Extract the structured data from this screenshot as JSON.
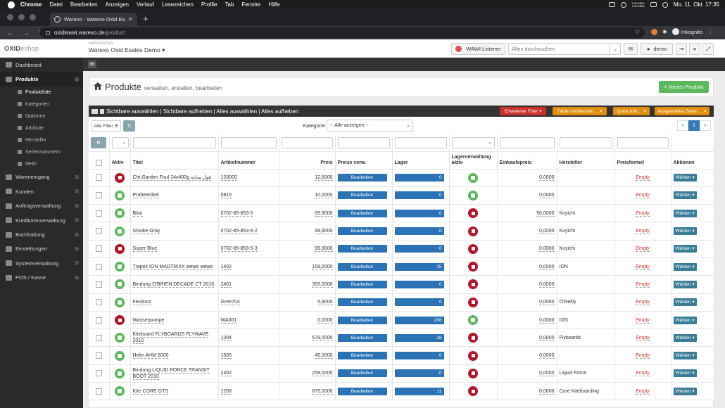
{
  "macbar": {
    "app": "Chrome",
    "menus": [
      "Datei",
      "Bearbeiten",
      "Anzeigen",
      "Verlauf",
      "Lesezeichen",
      "Profile",
      "Tab",
      "Fenster",
      "Hilfe"
    ],
    "net_up": "0.00 MB/s",
    "net_down": "0.03 MB/s",
    "clock": "Mo. 11. Okt.  17:35"
  },
  "browser": {
    "tab_title": "Warexo - Warexo Oxid Esales D",
    "host": "oxidwawi.warexo.de",
    "path": "/product",
    "profile": "Inkognito"
  },
  "header": {
    "logo_main": "OXID",
    "logo_sub": "eshop",
    "mandant_label": "MANDANTEN",
    "mandant_value": "Warexo Oxid Esales Demo",
    "wawi_label": "WAWI Listener",
    "search_placeholder": "Alles durchsuchen",
    "user": "demo"
  },
  "sidebar": {
    "items": [
      {
        "label": "Dashboard",
        "plus": ""
      },
      {
        "label": "Produkte",
        "plus": "⊟"
      }
    ],
    "subitems": [
      "Produktliste",
      "Kategorien",
      "Optionen",
      "Attribute",
      "Hersteller",
      "Seriennummern",
      "MHD"
    ],
    "items2": [
      {
        "label": "Wareneingang",
        "plus": "⊞"
      },
      {
        "label": "Kunden",
        "plus": "⊞"
      },
      {
        "label": "Auftragsverwaltung",
        "plus": "⊞"
      },
      {
        "label": "Kreditorenverwaltung",
        "plus": "⊞"
      },
      {
        "label": "Buchhaltung",
        "plus": "⊞"
      },
      {
        "label": "Einstellungen",
        "plus": "⊞"
      },
      {
        "label": "Systemverwaltung",
        "plus": "⊞"
      },
      {
        "label": "POS / Kasse",
        "plus": "⊞"
      }
    ]
  },
  "page": {
    "title": "Produkte",
    "subtitle": "verwalten, erstellen, bearbeiten",
    "new_button": "+ Neues Produkt"
  },
  "panel": {
    "selection": "Sichtbare auswählen | Sichtbare aufheben | Alles auswählen | Alles aufheben",
    "buttons": [
      {
        "label": "Erweiterter Filter ▾",
        "color": "#c9302c"
      },
      {
        "label": "Felder einblenden ... ▾",
        "color": "#e08e0b"
      },
      {
        "label": "Quick edit ... ▾",
        "color": "#e08e0b"
      },
      {
        "label": "Ausgewählte Zeilen ... ▾",
        "color": "#e08e0b"
      }
    ],
    "all_filter": "Alle Filter ☰",
    "s_button": "S",
    "kategorie_label": "Kategorie",
    "kategorie_value": "-- Alle anzeigen --",
    "pager": [
      "«",
      "1",
      "»"
    ],
    "r_button": "R"
  },
  "columns": [
    "",
    "Aktiv",
    "Titel",
    "Artikelnummer",
    "Preis",
    "Preise verw.",
    "Lager",
    "Lagerverwaltung aktiv",
    "Einkaufspreis",
    "Hersteller",
    "Preisformel",
    "Aktionen"
  ],
  "rows": [
    {
      "aktiv": false,
      "titel": "Cht.Garden Foul 24x400g فول ساده",
      "artnr": "120000",
      "preis": "12,5000",
      "preise": "Bearbeiten",
      "lager": "0",
      "lagerv": true,
      "ek": "0,0000",
      "hersteller": "",
      "formel": "Empty",
      "aktion": "Wählen ▾"
    },
    {
      "aktiv": true,
      "titel": "Probeartikel",
      "artnr": "0815",
      "preis": "10,0000",
      "preise": "Bearbeiten",
      "lager": "0",
      "lagerv": true,
      "ek": "0,0000",
      "hersteller": "",
      "formel": "Empty",
      "aktion": "Wählen ▾"
    },
    {
      "aktiv": true,
      "titel": "Blau",
      "artnr": "0702-85-853-5",
      "preis": "99,9000",
      "preise": "Bearbeiten",
      "lager": "0",
      "lagerv": false,
      "ek": "50,0000",
      "hersteller": "Kuyichi",
      "formel": "Empty",
      "aktion": "Wählen ▾"
    },
    {
      "aktiv": true,
      "titel": "Smoke Gray",
      "artnr": "0702-85-853-5-2",
      "preis": "99,9000",
      "preise": "Bearbeiten",
      "lager": "0",
      "lagerv": false,
      "ek": "0,0000",
      "hersteller": "Kuyichi",
      "formel": "Empty",
      "aktion": "Wählen ▾"
    },
    {
      "aktiv": false,
      "titel": "Super Blue",
      "artnr": "0702-85-853-5-3",
      "preis": "99,9000",
      "preise": "Bearbeiten",
      "lager": "0",
      "lagerv": false,
      "ek": "0,0000",
      "hersteller": "Kuyichi",
      "formel": "Empty",
      "aktion": "Wählen ▾"
    },
    {
      "aktiv": true,
      "titel": "Trapez ION MADTRIXX wewe wewe",
      "artnr": "1402",
      "preis": "159,0000",
      "preise": "Bearbeiten",
      "lager": "15",
      "lagerv": false,
      "ek": "0,0000",
      "hersteller": "ION",
      "formel": "Empty",
      "aktion": "Wählen ▾"
    },
    {
      "aktiv": true,
      "titel": "Bindung O'BRIEN DECADE CT 2010",
      "artnr": "2401",
      "preis": "359,0000",
      "preise": "Bearbeiten",
      "lager": "0",
      "lagerv": false,
      "ek": "0,0000",
      "hersteller": "",
      "formel": "Empty",
      "aktion": "Wählen ▾"
    },
    {
      "aktiv": true,
      "titel": "Feinkost",
      "artnr": "Gree704",
      "preis": "5,9000",
      "preise": "Bearbeiten",
      "lager": "0",
      "lagerv": false,
      "ek": "0,0000",
      "hersteller": "O'Reilly",
      "formel": "Empty",
      "aktion": "Wählen ▾"
    },
    {
      "aktiv": false,
      "titel": "Wasserpumpe",
      "artnr": "WA001",
      "preis": "0,0000",
      "preise": "Bearbeiten",
      "lager": "206",
      "lagerv": true,
      "ek": "0,0000",
      "hersteller": "ION",
      "formel": "Empty",
      "aktion": "Wählen ▾"
    },
    {
      "aktiv": true,
      "titel": "Kiteboard FLYBOARDS FLYWAVE 2010",
      "artnr": "1304",
      "preis": "679,0000",
      "preise": "Bearbeiten",
      "lager": "18",
      "lagerv": false,
      "ek": "0,0000",
      "hersteller": "Flyboards",
      "formel": "Empty",
      "aktion": "Wählen ▾"
    },
    {
      "aktiv": true,
      "titel": "Helm AHM 5000",
      "artnr": "1505",
      "preis": "45,0000",
      "preise": "Bearbeiten",
      "lager": "0",
      "lagerv": false,
      "ek": "0,0000",
      "hersteller": "",
      "formel": "Empty",
      "aktion": "Wählen ▾"
    },
    {
      "aktiv": true,
      "titel": "Bindung LIQUID FORCE TRANSIT BOOT 2010",
      "artnr": "2402",
      "preis": "259,0000",
      "preise": "Bearbeiten",
      "lager": "0",
      "lagerv": false,
      "ek": "0,0000",
      "hersteller": "Liquid Force",
      "formel": "Empty",
      "aktion": "Wählen ▾"
    },
    {
      "aktiv": true,
      "titel": "Kite CORE GTS",
      "artnr": "1208",
      "preis": "879,0000",
      "preise": "Bearbeiten",
      "lager": "11",
      "lagerv": false,
      "ek": "0,0000",
      "hersteller": "Core Kiteboarding",
      "formel": "Empty",
      "aktion": "Wählen ▾"
    }
  ]
}
